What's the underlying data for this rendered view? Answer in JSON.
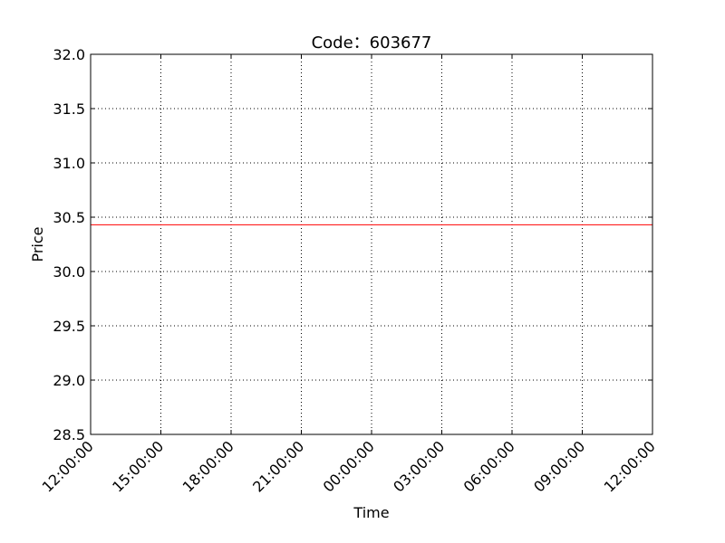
{
  "chart_data": {
    "type": "line",
    "title": "Code：603677",
    "xlabel": "Time",
    "ylabel": "Price",
    "ylim": [
      28.5,
      32.0
    ],
    "y_ticks": [
      "28.5",
      "29.0",
      "29.5",
      "30.0",
      "30.5",
      "31.0",
      "31.5",
      "32.0"
    ],
    "x_ticks": [
      "12:00:00",
      "15:00:00",
      "18:00:00",
      "21:00:00",
      "00:00:00",
      "03:00:00",
      "06:00:00",
      "09:00:00",
      "12:00:00"
    ],
    "grid": true,
    "series": [
      {
        "color": "#ff0000",
        "x": [
          "12:00:00",
          "12:00:00"
        ],
        "y": [
          30.43,
          30.43
        ]
      }
    ]
  }
}
